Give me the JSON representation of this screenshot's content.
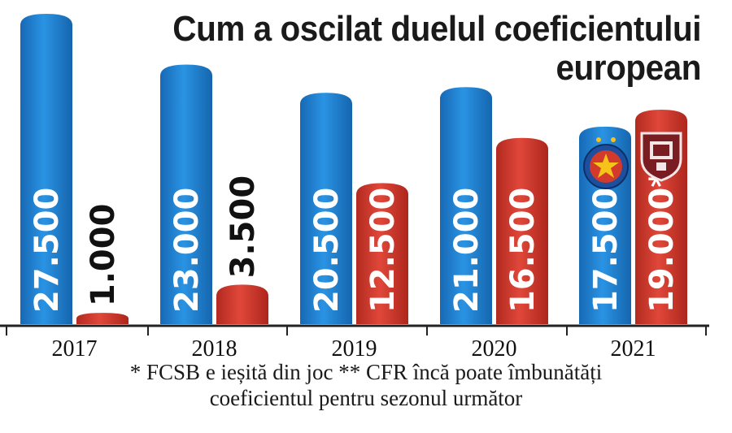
{
  "chart_data": {
    "type": "bar",
    "title": "Cum a oscilat duelul coeficientului european",
    "categories": [
      "2017",
      "2018",
      "2019",
      "2020",
      "2021"
    ],
    "series": [
      {
        "values": [
          27.5,
          23.0,
          20.5,
          21.0,
          17.5
        ],
        "labels": [
          "27.500",
          "23.000",
          "20.500",
          "21.000",
          "17.500*"
        ],
        "color": "#1f7fd0"
      },
      {
        "values": [
          1.0,
          3.5,
          12.5,
          16.5,
          19.0
        ],
        "labels": [
          "1.000",
          "3.500",
          "12.500",
          "16.500",
          "19.000**"
        ],
        "color": "#d23a2c"
      }
    ],
    "ylim": [
      0,
      28
    ]
  },
  "footnote": {
    "line1": "* FCSB e ieșită din joc ** CFR încă poate îmbunătăți",
    "line2": "coeficientul pentru sezonul următor"
  },
  "logos": {
    "series1_2021": "fcsb-crest-icon",
    "series2_2021": "cfr-crest-icon"
  }
}
